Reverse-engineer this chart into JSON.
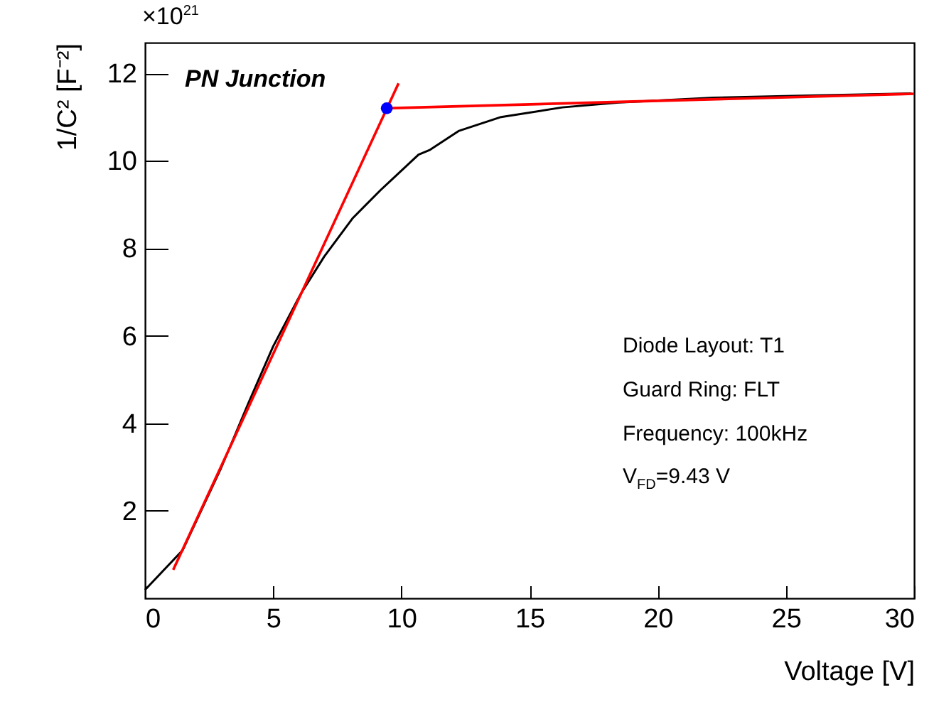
{
  "chart_data": {
    "type": "line",
    "xlabel": "Voltage [V]",
    "ylabel": "1/C² [F⁻²]",
    "xlim": [
      0,
      30
    ],
    "ylim": [
      0,
      12.7
    ],
    "xticks": [
      0,
      5,
      10,
      15,
      20,
      25,
      30
    ],
    "yticks": [
      2,
      4,
      6,
      8,
      10,
      12
    ],
    "grid": false,
    "annotations": [
      "×10$^{21}$",
      "PN Junction",
      "Diode Layout: T1",
      "Guard Ring: FLT",
      "Frequency: 100kHz",
      "V$_{FD}$=9.43 V"
    ],
    "series": [
      {
        "color": "#000000",
        "x": [
          0,
          1.47,
          2.94,
          4.04,
          5,
          6.07,
          6.99,
          8.09,
          9.19,
          10.67,
          11.12,
          12.23,
          13.89,
          16.28,
          18.49,
          22.17,
          25.86,
          29.9
        ],
        "values": [
          0.19,
          1.1,
          2.94,
          4.47,
          5.76,
          6.95,
          7.81,
          8.68,
          9.33,
          10.14,
          10.25,
          10.68,
          11.0,
          11.22,
          11.33,
          11.44,
          11.49,
          11.54
        ]
      },
      {
        "type": "line",
        "color": "#ff0000",
        "x": [
          1.1,
          9.89
        ],
        "values": [
          0.65,
          11.77
        ]
      },
      {
        "type": "line",
        "color": "#ff0000",
        "x": [
          9.43,
          30
        ],
        "values": [
          11.2,
          11.53
        ]
      },
      {
        "type": "scatter",
        "color": "#0000ff",
        "marker": "circle",
        "x": [
          9.43
        ],
        "values": [
          11.2
        ]
      }
    ]
  }
}
